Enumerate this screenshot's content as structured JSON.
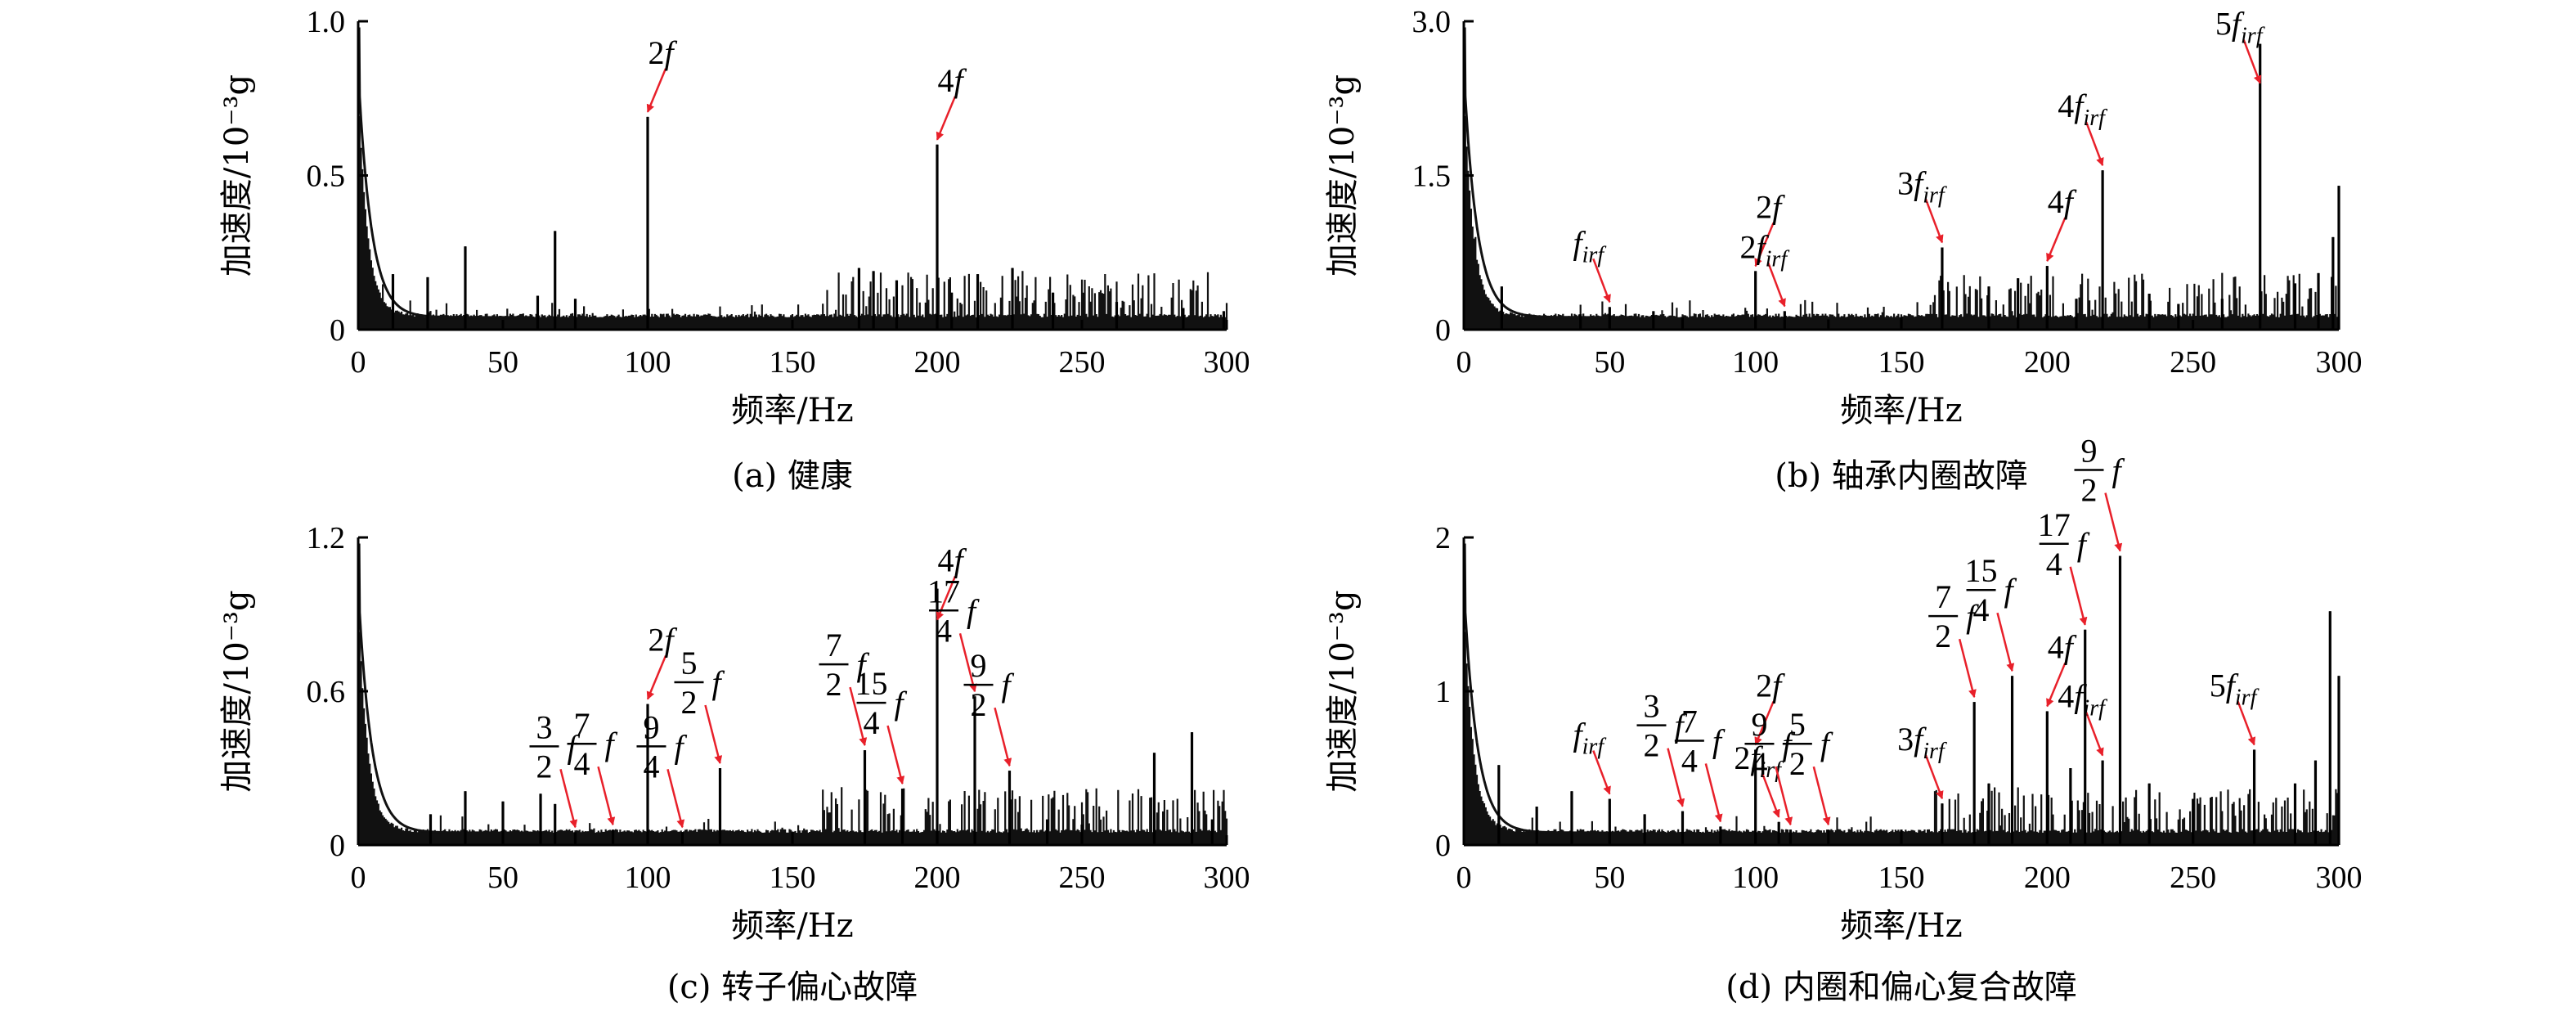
{
  "chart_data": [
    {
      "type": "line",
      "caption": "(a) 健康",
      "xlabel": "频率/Hz",
      "ylabel": "加速度/10⁻³g",
      "xlim": [
        0,
        300
      ],
      "ylim": [
        0,
        1.0
      ],
      "xticks": [
        "0",
        "50",
        "100",
        "150",
        "200",
        "250",
        "300"
      ],
      "yticks": [
        "0",
        "0.5",
        "1.0"
      ],
      "peaks": [
        {
          "x": 12,
          "y": 0.18
        },
        {
          "x": 24,
          "y": 0.17
        },
        {
          "x": 37,
          "y": 0.27
        },
        {
          "x": 62,
          "y": 0.11
        },
        {
          "x": 68,
          "y": 0.32
        },
        {
          "x": 75,
          "y": 0.1
        },
        {
          "x": 100,
          "y": 0.69
        },
        {
          "x": 173,
          "y": 0.2
        },
        {
          "x": 178,
          "y": 0.19
        },
        {
          "x": 186,
          "y": 0.16
        },
        {
          "x": 200,
          "y": 0.6
        },
        {
          "x": 205,
          "y": 0.12
        },
        {
          "x": 214,
          "y": 0.18
        },
        {
          "x": 226,
          "y": 0.2
        },
        {
          "x": 240,
          "y": 0.12
        },
        {
          "x": 262,
          "y": 0.09
        },
        {
          "x": 285,
          "y": 0.07
        },
        {
          "x": 299,
          "y": 0.06
        }
      ],
      "annotations": [
        {
          "base": "2",
          "sub": "",
          "x": 100,
          "y": 0.69
        },
        {
          "base": "4",
          "sub": "",
          "x": 200,
          "y": 0.6
        }
      ]
    },
    {
      "type": "line",
      "caption": "(b) 轴承内圈故障",
      "xlabel": "频率/Hz",
      "ylabel": "加速度/10⁻³g",
      "xlim": [
        0,
        300
      ],
      "ylim": [
        0,
        3.0
      ],
      "xticks": [
        "0",
        "50",
        "100",
        "150",
        "200",
        "250",
        "300"
      ],
      "yticks": [
        "0",
        "1.5",
        "3.0"
      ],
      "peaks": [
        {
          "x": 13,
          "y": 0.42
        },
        {
          "x": 40,
          "y": 0.15
        },
        {
          "x": 50,
          "y": 0.22
        },
        {
          "x": 65,
          "y": 0.18
        },
        {
          "x": 75,
          "y": 0.12
        },
        {
          "x": 100,
          "y": 0.57
        },
        {
          "x": 110,
          "y": 0.18
        },
        {
          "x": 125,
          "y": 0.1
        },
        {
          "x": 150,
          "y": 0.12
        },
        {
          "x": 164,
          "y": 0.8
        },
        {
          "x": 180,
          "y": 0.42
        },
        {
          "x": 190,
          "y": 0.5
        },
        {
          "x": 200,
          "y": 0.62
        },
        {
          "x": 210,
          "y": 0.3
        },
        {
          "x": 219,
          "y": 1.55
        },
        {
          "x": 235,
          "y": 0.35
        },
        {
          "x": 245,
          "y": 0.25
        },
        {
          "x": 260,
          "y": 0.3
        },
        {
          "x": 273,
          "y": 2.78
        },
        {
          "x": 285,
          "y": 0.45
        },
        {
          "x": 293,
          "y": 0.55
        },
        {
          "x": 298,
          "y": 0.9
        },
        {
          "x": 300,
          "y": 1.4
        }
      ],
      "annotations": [
        {
          "base": "",
          "sub": "irf",
          "x": 50,
          "y": 0.22
        },
        {
          "base": "2",
          "sub": "",
          "x": 100,
          "y": 0.57
        },
        {
          "base": "2",
          "sub": "irf",
          "x": 110,
          "y": 0.18
        },
        {
          "base": "3",
          "sub": "irf",
          "x": 164,
          "y": 0.8
        },
        {
          "base": "4",
          "sub": "",
          "x": 200,
          "y": 0.62
        },
        {
          "base": "4",
          "sub": "irf",
          "x": 219,
          "y": 1.55
        },
        {
          "base": "5",
          "sub": "irf",
          "x": 273,
          "y": 2.35
        }
      ]
    },
    {
      "type": "line",
      "caption": "(c) 转子偏心故障",
      "xlabel": "频率/Hz",
      "ylabel": "加速度/10⁻³g",
      "xlim": [
        0,
        300
      ],
      "ylim": [
        0,
        1.2
      ],
      "xticks": [
        "0",
        "50",
        "100",
        "150",
        "200",
        "250",
        "300"
      ],
      "yticks": [
        "0",
        "0.6",
        "1.2"
      ],
      "peaks": [
        {
          "x": 25,
          "y": 0.12
        },
        {
          "x": 37,
          "y": 0.21
        },
        {
          "x": 50,
          "y": 0.17
        },
        {
          "x": 63,
          "y": 0.2
        },
        {
          "x": 68,
          "y": 0.16
        },
        {
          "x": 75,
          "y": 0.05
        },
        {
          "x": 88,
          "y": 0.06
        },
        {
          "x": 100,
          "y": 0.55
        },
        {
          "x": 112,
          "y": 0.05
        },
        {
          "x": 125,
          "y": 0.3
        },
        {
          "x": 150,
          "y": 0.05
        },
        {
          "x": 175,
          "y": 0.37
        },
        {
          "x": 188,
          "y": 0.22
        },
        {
          "x": 200,
          "y": 1.0
        },
        {
          "x": 213,
          "y": 0.58
        },
        {
          "x": 225,
          "y": 0.29
        },
        {
          "x": 238,
          "y": 0.1
        },
        {
          "x": 250,
          "y": 0.08
        },
        {
          "x": 275,
          "y": 0.36
        },
        {
          "x": 288,
          "y": 0.44
        },
        {
          "x": 295,
          "y": 0.1
        }
      ],
      "annotations": [
        {
          "num": "3",
          "den": "2",
          "x": 75,
          "y": 0.05
        },
        {
          "num": "7",
          "den": "4",
          "x": 88,
          "y": 0.06
        },
        {
          "base": "2",
          "sub": "",
          "x": 100,
          "y": 0.55
        },
        {
          "num": "9",
          "den": "4",
          "x": 112,
          "y": 0.05
        },
        {
          "num": "5",
          "den": "2",
          "x": 125,
          "y": 0.3
        },
        {
          "num": "7",
          "den": "2",
          "x": 175,
          "y": 0.37
        },
        {
          "num": "15",
          "den": "4",
          "x": 188,
          "y": 0.22
        },
        {
          "base": "4",
          "sub": "",
          "x": 200,
          "y": 0.86
        },
        {
          "num": "17",
          "den": "4",
          "x": 213,
          "y": 0.58
        },
        {
          "num": "9",
          "den": "2",
          "x": 225,
          "y": 0.29
        }
      ]
    },
    {
      "type": "line",
      "caption": "(d) 内圈和偏心复合故障",
      "xlabel": "频率/Hz",
      "ylabel": "加速度/10⁻³g",
      "xlim": [
        0,
        300
      ],
      "ylim": [
        0,
        2
      ],
      "xticks": [
        "0",
        "50",
        "100",
        "150",
        "200",
        "250",
        "300"
      ],
      "yticks": [
        "0",
        "1",
        "2"
      ],
      "peaks": [
        {
          "x": 12,
          "y": 0.52
        },
        {
          "x": 25,
          "y": 0.25
        },
        {
          "x": 37,
          "y": 0.35
        },
        {
          "x": 50,
          "y": 0.3
        },
        {
          "x": 62,
          "y": 0.2
        },
        {
          "x": 75,
          "y": 0.22
        },
        {
          "x": 88,
          "y": 0.12
        },
        {
          "x": 100,
          "y": 0.62
        },
        {
          "x": 108,
          "y": 0.15
        },
        {
          "x": 112,
          "y": 0.1
        },
        {
          "x": 125,
          "y": 0.1
        },
        {
          "x": 150,
          "y": 0.1
        },
        {
          "x": 164,
          "y": 0.27
        },
        {
          "x": 175,
          "y": 0.93
        },
        {
          "x": 180,
          "y": 0.4
        },
        {
          "x": 188,
          "y": 1.1
        },
        {
          "x": 200,
          "y": 0.87
        },
        {
          "x": 208,
          "y": 0.5
        },
        {
          "x": 213,
          "y": 1.4
        },
        {
          "x": 219,
          "y": 0.55
        },
        {
          "x": 225,
          "y": 1.88
        },
        {
          "x": 235,
          "y": 0.4
        },
        {
          "x": 250,
          "y": 0.3
        },
        {
          "x": 271,
          "y": 0.62
        },
        {
          "x": 285,
          "y": 0.4
        },
        {
          "x": 292,
          "y": 0.55
        },
        {
          "x": 297,
          "y": 1.52
        },
        {
          "x": 300,
          "y": 1.1
        }
      ],
      "annotations": [
        {
          "base": "",
          "sub": "irf",
          "x": 50,
          "y": 0.3
        },
        {
          "num": "3",
          "den": "2",
          "x": 75,
          "y": 0.22
        },
        {
          "num": "7",
          "den": "4",
          "x": 88,
          "y": 0.12
        },
        {
          "base": "2",
          "sub": "",
          "x": 100,
          "y": 0.62
        },
        {
          "base": "2",
          "sub": "irf",
          "x": 108,
          "y": 0.15
        },
        {
          "num": "9",
          "den": "4",
          "x": 112,
          "y": 0.1
        },
        {
          "num": "5",
          "den": "2",
          "x": 125,
          "y": 0.1
        },
        {
          "base": "3",
          "sub": "irf",
          "x": 164,
          "y": 0.27
        },
        {
          "num": "7",
          "den": "2",
          "x": 175,
          "y": 0.93
        },
        {
          "num": "15",
          "den": "4",
          "x": 188,
          "y": 1.1
        },
        {
          "base": "4",
          "sub": "",
          "x": 200,
          "y": 0.87
        },
        {
          "num": "17",
          "den": "4",
          "x": 213,
          "y": 1.4
        },
        {
          "base": "4",
          "sub": "irf",
          "x": 219,
          "y": 0.55
        },
        {
          "num": "9",
          "den": "2",
          "x": 225,
          "y": 1.88
        },
        {
          "base": "5",
          "sub": "irf",
          "x": 271,
          "y": 0.62
        }
      ]
    }
  ]
}
